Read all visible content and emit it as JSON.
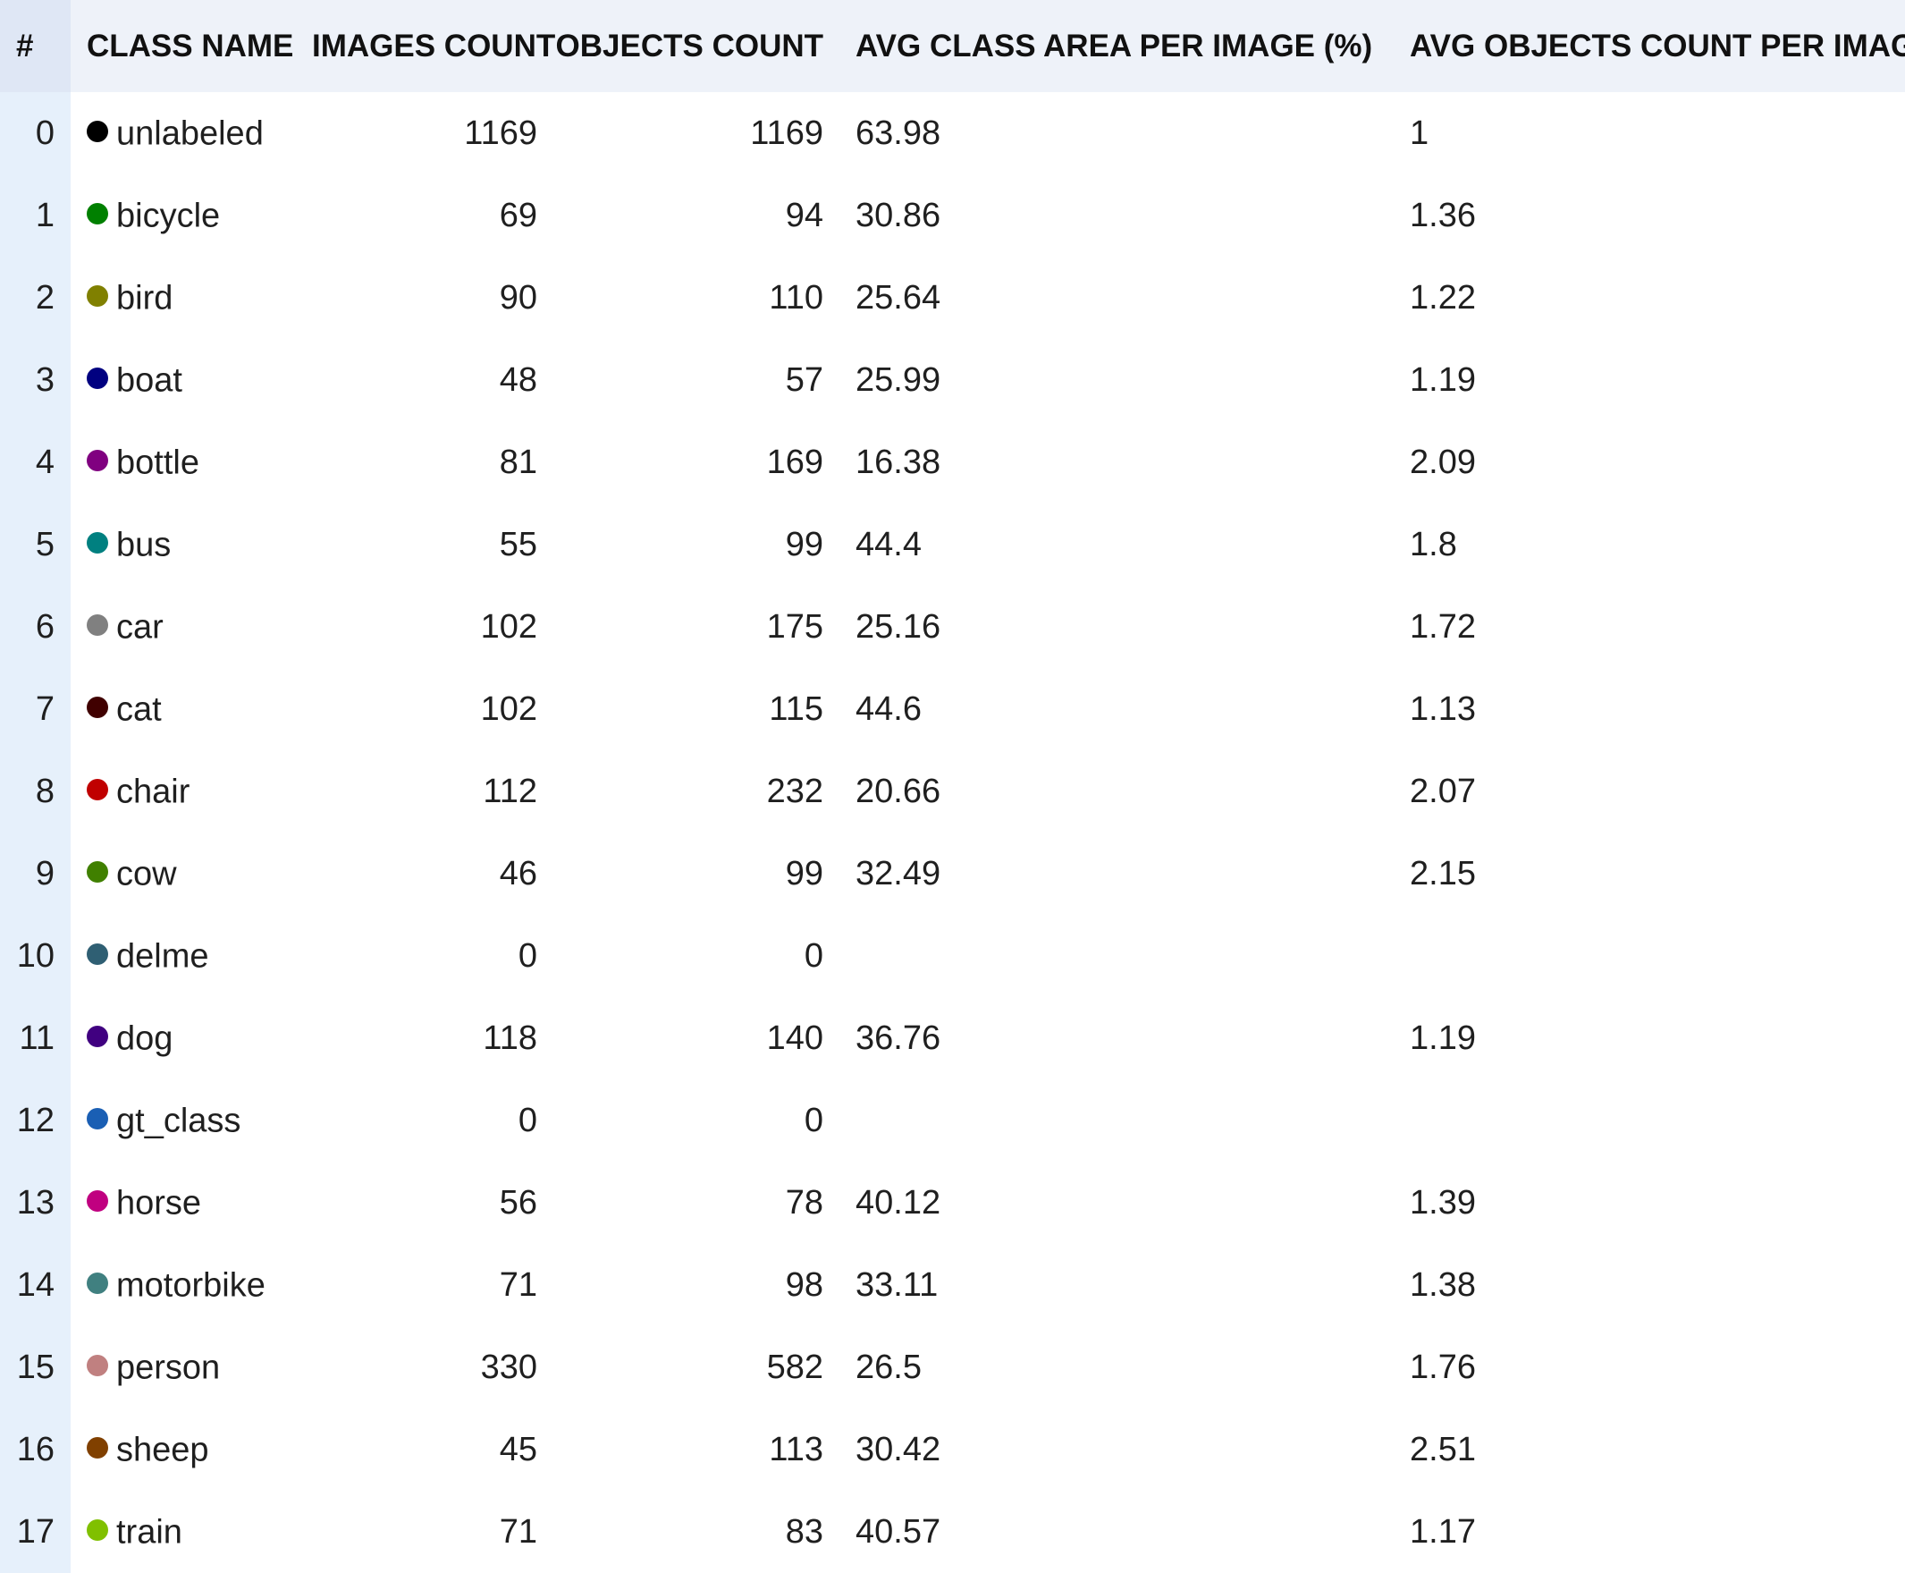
{
  "table": {
    "headers": {
      "index": "#",
      "class_name": "CLASS NAME",
      "images_count": "IMAGES COUNT",
      "objects_count": "OBJECTS COUNT",
      "avg_area": "AVG CLASS AREA PER IMAGE (%)",
      "avg_objects": "AVG OBJECTS COUNT PER IMAGE"
    },
    "rows": [
      {
        "index": "0",
        "class": "unlabeled",
        "color": "#000000",
        "images": "1169",
        "objects": "1169",
        "avg_area": "63.98",
        "avg_objects": "1"
      },
      {
        "index": "1",
        "class": "bicycle",
        "color": "#008000",
        "images": "69",
        "objects": "94",
        "avg_area": "30.86",
        "avg_objects": "1.36"
      },
      {
        "index": "2",
        "class": "bird",
        "color": "#808000",
        "images": "90",
        "objects": "110",
        "avg_area": "25.64",
        "avg_objects": "1.22"
      },
      {
        "index": "3",
        "class": "boat",
        "color": "#000080",
        "images": "48",
        "objects": "57",
        "avg_area": "25.99",
        "avg_objects": "1.19"
      },
      {
        "index": "4",
        "class": "bottle",
        "color": "#800080",
        "images": "81",
        "objects": "169",
        "avg_area": "16.38",
        "avg_objects": "2.09"
      },
      {
        "index": "5",
        "class": "bus",
        "color": "#008080",
        "images": "55",
        "objects": "99",
        "avg_area": "44.4",
        "avg_objects": "1.8"
      },
      {
        "index": "6",
        "class": "car",
        "color": "#808080",
        "images": "102",
        "objects": "175",
        "avg_area": "25.16",
        "avg_objects": "1.72"
      },
      {
        "index": "7",
        "class": "cat",
        "color": "#400000",
        "images": "102",
        "objects": "115",
        "avg_area": "44.6",
        "avg_objects": "1.13"
      },
      {
        "index": "8",
        "class": "chair",
        "color": "#c00000",
        "images": "112",
        "objects": "232",
        "avg_area": "20.66",
        "avg_objects": "2.07"
      },
      {
        "index": "9",
        "class": "cow",
        "color": "#408000",
        "images": "46",
        "objects": "99",
        "avg_area": "32.49",
        "avg_objects": "2.15"
      },
      {
        "index": "10",
        "class": "delme",
        "color": "#2f5f73",
        "images": "0",
        "objects": "0",
        "avg_area": "",
        "avg_objects": ""
      },
      {
        "index": "11",
        "class": "dog",
        "color": "#400080",
        "images": "118",
        "objects": "140",
        "avg_area": "36.76",
        "avg_objects": "1.19"
      },
      {
        "index": "12",
        "class": "gt_class",
        "color": "#1a5fb4",
        "images": "0",
        "objects": "0",
        "avg_area": "",
        "avg_objects": ""
      },
      {
        "index": "13",
        "class": "horse",
        "color": "#c00080",
        "images": "56",
        "objects": "78",
        "avg_area": "40.12",
        "avg_objects": "1.39"
      },
      {
        "index": "14",
        "class": "motorbike",
        "color": "#408080",
        "images": "71",
        "objects": "98",
        "avg_area": "33.11",
        "avg_objects": "1.38"
      },
      {
        "index": "15",
        "class": "person",
        "color": "#c08080",
        "images": "330",
        "objects": "582",
        "avg_area": "26.5",
        "avg_objects": "1.76"
      },
      {
        "index": "16",
        "class": "sheep",
        "color": "#804000",
        "images": "45",
        "objects": "113",
        "avg_area": "30.42",
        "avg_objects": "2.51"
      },
      {
        "index": "17",
        "class": "train",
        "color": "#80c000",
        "images": "71",
        "objects": "83",
        "avg_area": "40.57",
        "avg_objects": "1.17"
      }
    ]
  }
}
